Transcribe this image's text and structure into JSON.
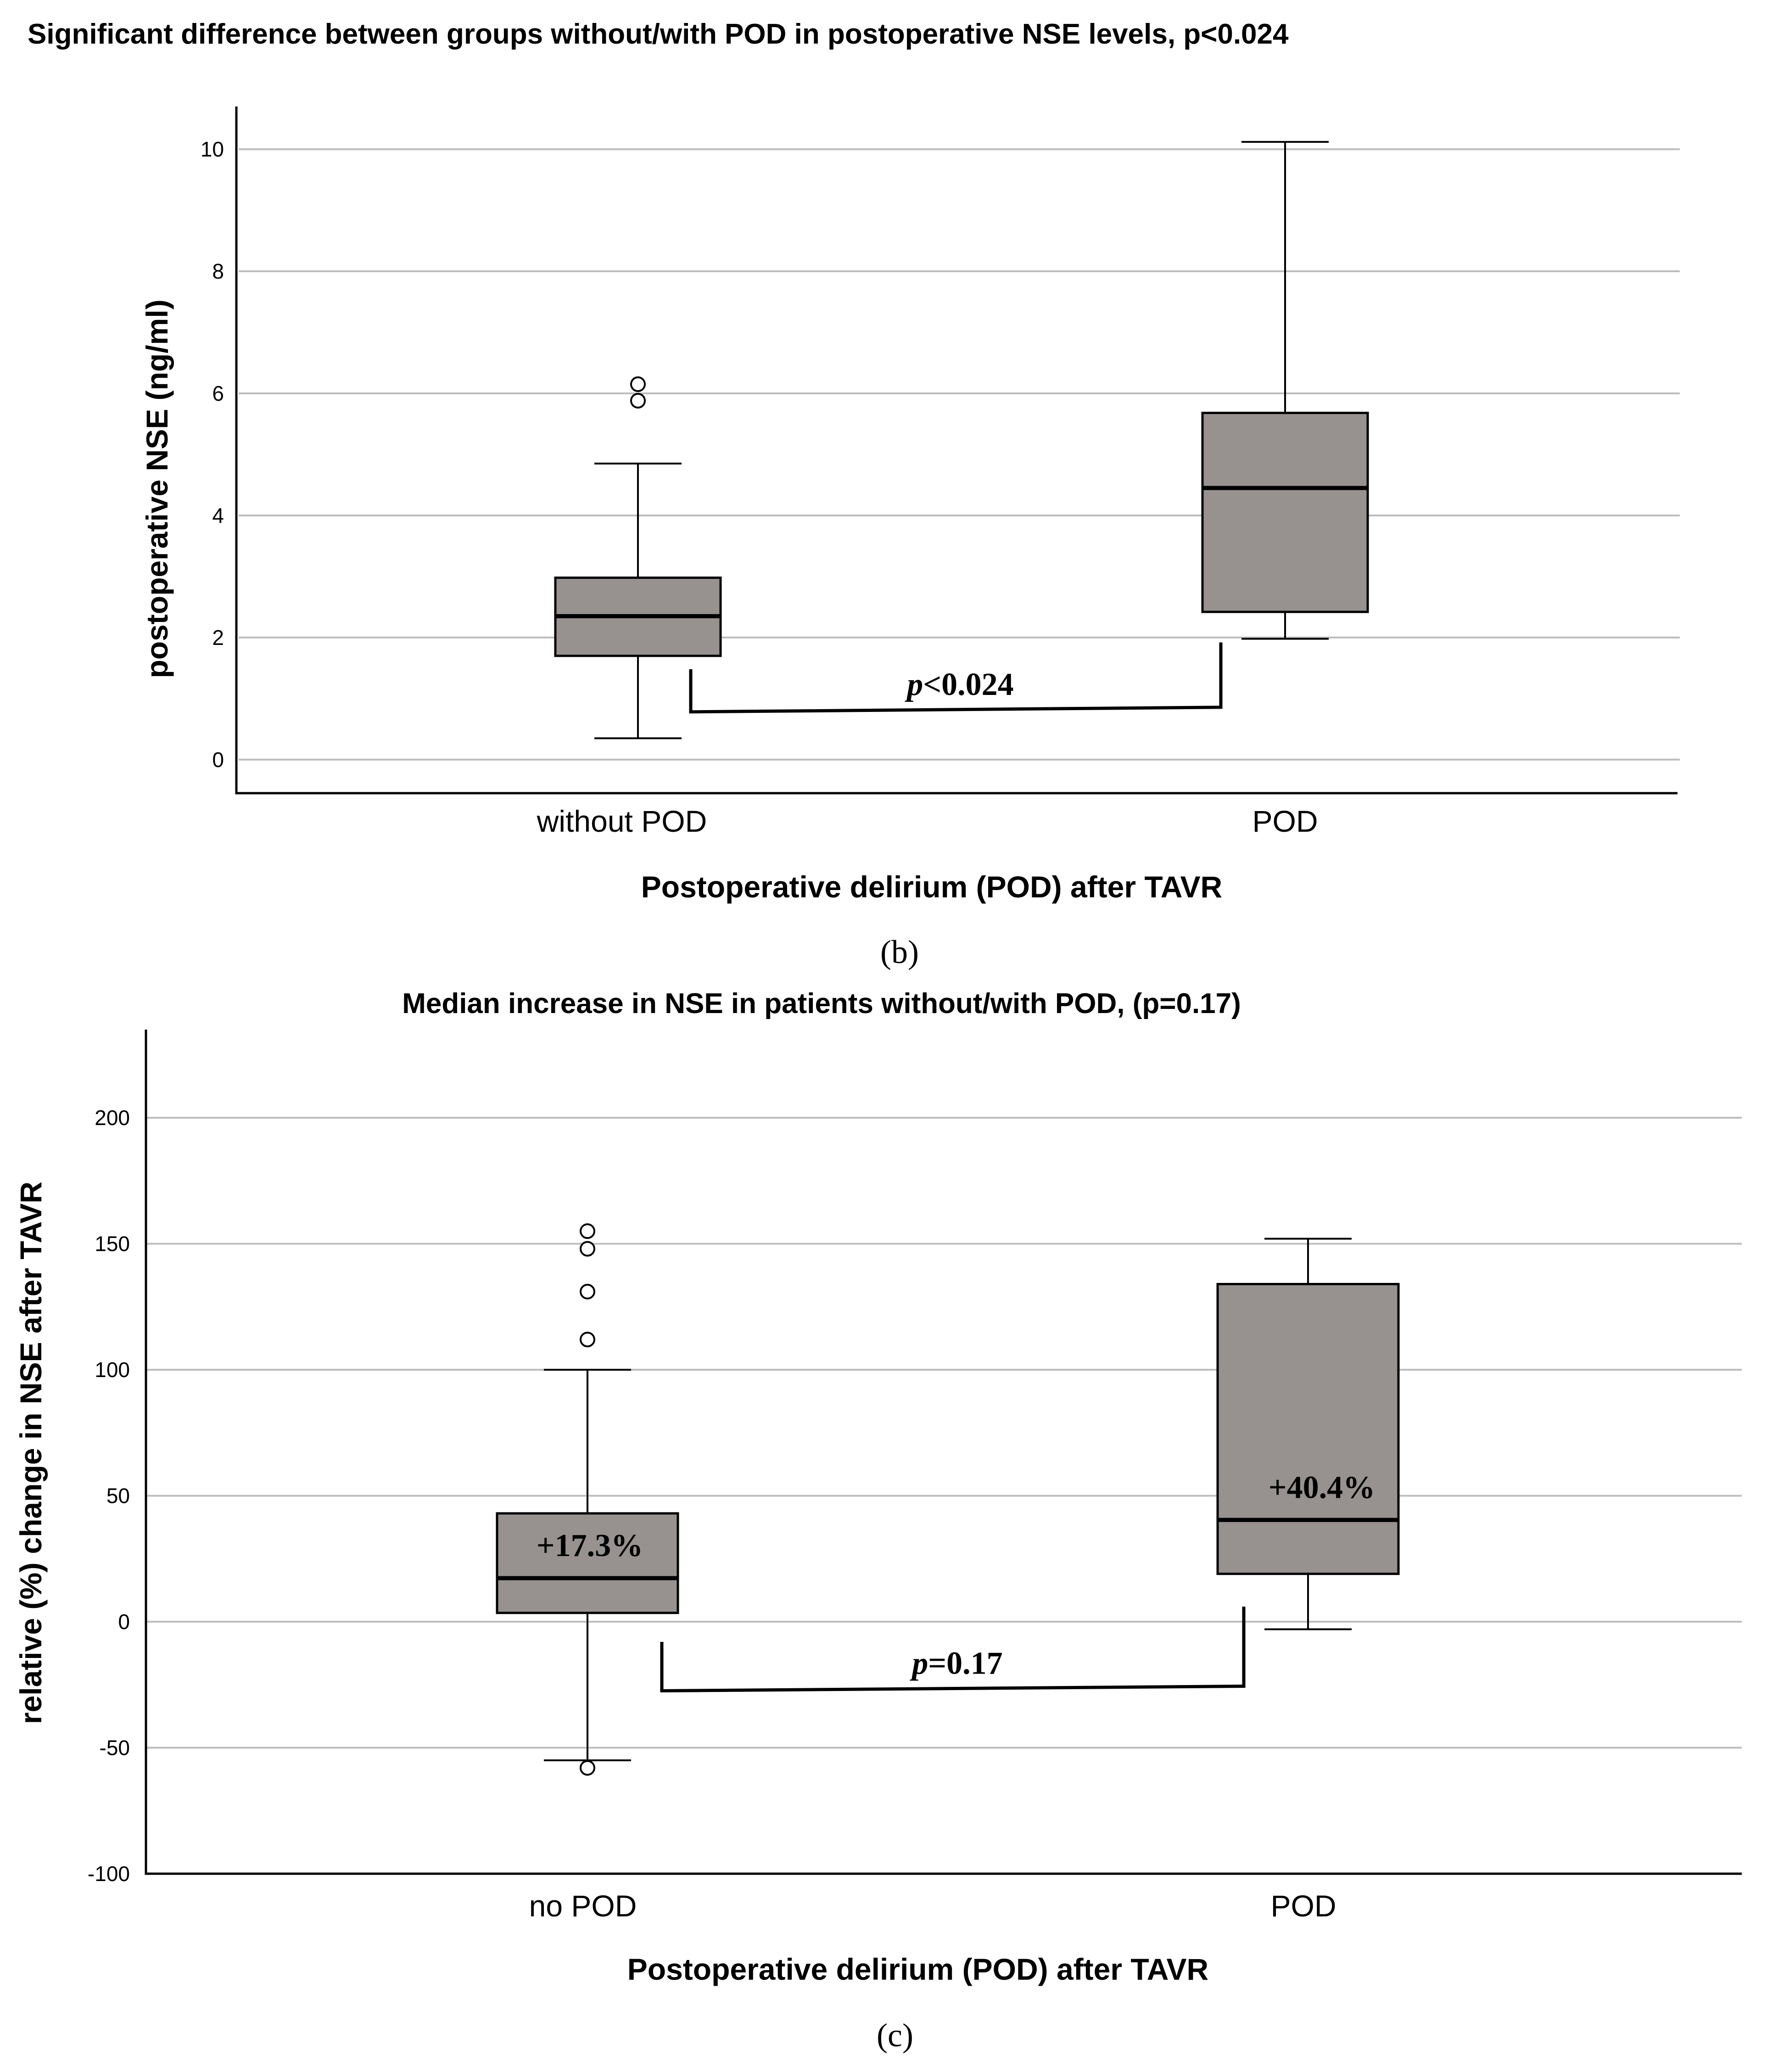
{
  "chart_data": [
    {
      "id": "b",
      "type": "box",
      "panel_label": "(b)",
      "title": "Significant difference between groups without/with POD in postoperative NSE levels, p<0.024",
      "ylabel": "postoperative NSE (ng/ml)",
      "xlabel": "Postoperative delirium (POD) after TAVR",
      "ylim": [
        -0.55,
        10.7
      ],
      "yticks": [
        0,
        2,
        4,
        6,
        8,
        10
      ],
      "grid": true,
      "categories": [
        "without POD",
        "POD"
      ],
      "series": [
        {
          "name": "without POD",
          "min": 0.35,
          "q1": 1.7,
          "median": 2.35,
          "q3": 2.98,
          "max": 4.85,
          "outliers": [
            5.88,
            6.15
          ]
        },
        {
          "name": "POD",
          "min": 1.98,
          "q1": 2.42,
          "median": 4.45,
          "q3": 5.68,
          "max": 10.12,
          "outliers": []
        }
      ],
      "bracket": {
        "label_italic": "p",
        "label_rest": "<0.024",
        "y_value": 0.82,
        "left_top": 1.48,
        "right_top": 1.92
      }
    },
    {
      "id": "c",
      "type": "box",
      "panel_label": "(c)",
      "title": "Median increase in NSE in patients without/with POD, (p=0.17)",
      "ylabel": "relative (%) change in NSE after TAVR",
      "xlabel": "Postoperative delirium (POD) after TAVR",
      "ylim": [
        -100,
        235
      ],
      "yticks": [
        -100,
        -50,
        0,
        50,
        100,
        150,
        200
      ],
      "grid": true,
      "categories": [
        "no POD",
        "POD"
      ],
      "series": [
        {
          "name": "no POD",
          "min": -55,
          "q1": 3.5,
          "median": 17.3,
          "q3": 43,
          "max": 100,
          "outliers": [
            112,
            131,
            148,
            155,
            -58
          ],
          "label": "+17.3%"
        },
        {
          "name": "POD",
          "min": -3,
          "q1": 19,
          "median": 40.4,
          "q3": 134,
          "max": 152,
          "outliers": [],
          "label": "+40.4%"
        }
      ],
      "bracket": {
        "label_italic": "p",
        "label_rest": "=0.17",
        "y_value": -26.5,
        "left_top": -8,
        "right_top": 6
      }
    }
  ]
}
